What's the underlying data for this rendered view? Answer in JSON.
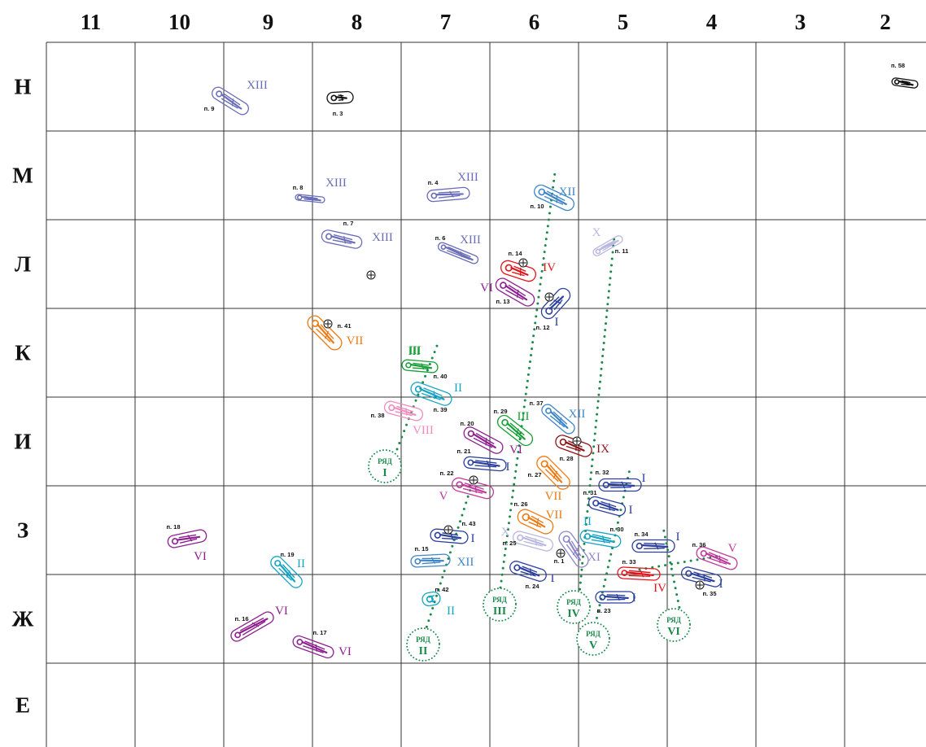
{
  "grid": {
    "columns": [
      "11",
      "10",
      "9",
      "8",
      "7",
      "6",
      "5",
      "4",
      "3",
      "2"
    ],
    "rows": [
      "Н",
      "М",
      "Л",
      "К",
      "И",
      "З",
      "Ж",
      "Е"
    ]
  },
  "colors": {
    "I": "#2b3f9e",
    "II": "#16a4c4",
    "III": "#17a035",
    "IV": "#e3141a",
    "V": "#c13a9c",
    "VI": "#8d1f8f",
    "VII": "#ee7a12",
    "VIII": "#f28ac0",
    "IX": "#8e1419",
    "X": "#b9b8e0",
    "XI": "#8d86c9",
    "XII": "#3f86c8",
    "XIII": "#6a6db8",
    "none": "#111111",
    "row": "#1a8a4a"
  },
  "burials": [
    {
      "label": "п. 58",
      "group": "none"
    },
    {
      "label": "п. 3",
      "group": "none"
    },
    {
      "label": "п. 9",
      "group": "XIII",
      "marker": "XIII"
    },
    {
      "label": "п. 8",
      "group": "XIII",
      "marker": "XIII"
    },
    {
      "label": "п. 4",
      "group": "XIII",
      "marker": "XIII"
    },
    {
      "label": "п. 7",
      "group": "XIII",
      "marker": "XIII"
    },
    {
      "label": "п. 6",
      "group": "XIII",
      "marker": "XIII"
    },
    {
      "label": "п. 10",
      "group": "XII",
      "marker": "XII"
    },
    {
      "label": "п. 11",
      "group": "X",
      "marker": "X"
    },
    {
      "label": "п. 14",
      "group": "IV",
      "marker": "IV"
    },
    {
      "label": "п. 13",
      "group": "VI",
      "marker": "VI"
    },
    {
      "label": "п. 12",
      "group": "I",
      "marker": "I"
    },
    {
      "label": "п. 41",
      "group": "VII",
      "marker": "VII"
    },
    {
      "label": "п. 40",
      "group": "III",
      "marker": "III"
    },
    {
      "label": "п. 39",
      "group": "II",
      "marker": "II"
    },
    {
      "label": "п. 38",
      "group": "VIII",
      "marker": "VIII"
    },
    {
      "label": "п. 37",
      "group": "XII",
      "marker": "XII"
    },
    {
      "label": "п. 29",
      "group": "III",
      "marker": "III"
    },
    {
      "label": "п. 20",
      "group": "VI",
      "marker": "VI"
    },
    {
      "label": "п. 28",
      "group": "IX",
      "marker": "IX"
    },
    {
      "label": "п. 21",
      "group": "I",
      "marker": "I"
    },
    {
      "label": "п. 27",
      "group": "VII",
      "marker": "VII"
    },
    {
      "label": "п. 22",
      "group": "V",
      "marker": "V"
    },
    {
      "label": "п. 32",
      "group": "I",
      "marker": "I"
    },
    {
      "label": "п. 31",
      "group": "I",
      "marker": "I"
    },
    {
      "label": "п. 26",
      "group": "VII",
      "marker": "VII"
    },
    {
      "label": "п. 43",
      "group": "I",
      "marker": "I"
    },
    {
      "label": "п. 30",
      "group": "II",
      "marker": "II"
    },
    {
      "label": "п. 25",
      "group": "X",
      "marker": "X"
    },
    {
      "label": "п. 1",
      "group": "XI",
      "marker": "XI"
    },
    {
      "label": "п. 34",
      "group": "I",
      "marker": "I"
    },
    {
      "label": "п. 36",
      "group": "V",
      "marker": "V"
    },
    {
      "label": "п. 15",
      "group": "XII",
      "marker": "XII"
    },
    {
      "label": "п. 24",
      "group": "I",
      "marker": "I"
    },
    {
      "label": "п. 33",
      "group": "IV",
      "marker": "IV"
    },
    {
      "label": "п. 35",
      "group": "I",
      "marker": "I"
    },
    {
      "label": "п. 42",
      "group": "II",
      "marker": "II"
    },
    {
      "label": "п. 23",
      "group": "I",
      "marker": "I"
    },
    {
      "label": "п. 18",
      "group": "VI",
      "marker": "VI"
    },
    {
      "label": "п. 19",
      "group": "II",
      "marker": "II"
    },
    {
      "label": "п. 16",
      "group": "VI",
      "marker": "VI"
    },
    {
      "label": "п. 17",
      "group": "VI",
      "marker": "VI"
    }
  ],
  "extra_markers": [
    {
      "text": "III",
      "group": "III"
    }
  ],
  "row_groups": [
    {
      "word": "РЯД",
      "numeral": "I"
    },
    {
      "word": "РЯД",
      "numeral": "II"
    },
    {
      "word": "РЯД",
      "numeral": "III"
    },
    {
      "word": "РЯД",
      "numeral": "IV"
    },
    {
      "word": "РЯД",
      "numeral": "V"
    },
    {
      "word": "РЯД",
      "numeral": "VI"
    }
  ]
}
